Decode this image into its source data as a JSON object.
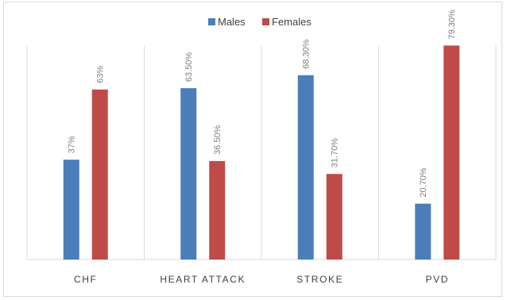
{
  "chart_data": {
    "type": "bar",
    "categories": [
      "CHF",
      "HEART ATTACK",
      "STROKE",
      "PVD"
    ],
    "series": [
      {
        "name": "Males",
        "color": "#4a7ebb",
        "values": [
          37,
          63.5,
          68.3,
          20.7
        ],
        "labels": [
          "37%",
          "63.50%",
          "68.30%",
          "20.70%"
        ]
      },
      {
        "name": "Females",
        "color": "#be4b48",
        "values": [
          63,
          36.5,
          31.7,
          79.3
        ],
        "labels": [
          "63%",
          "36.50%",
          "31.70%",
          "79.30%"
        ]
      }
    ],
    "ylim": [
      0,
      90
    ],
    "grid": false,
    "legend_position": "top"
  }
}
